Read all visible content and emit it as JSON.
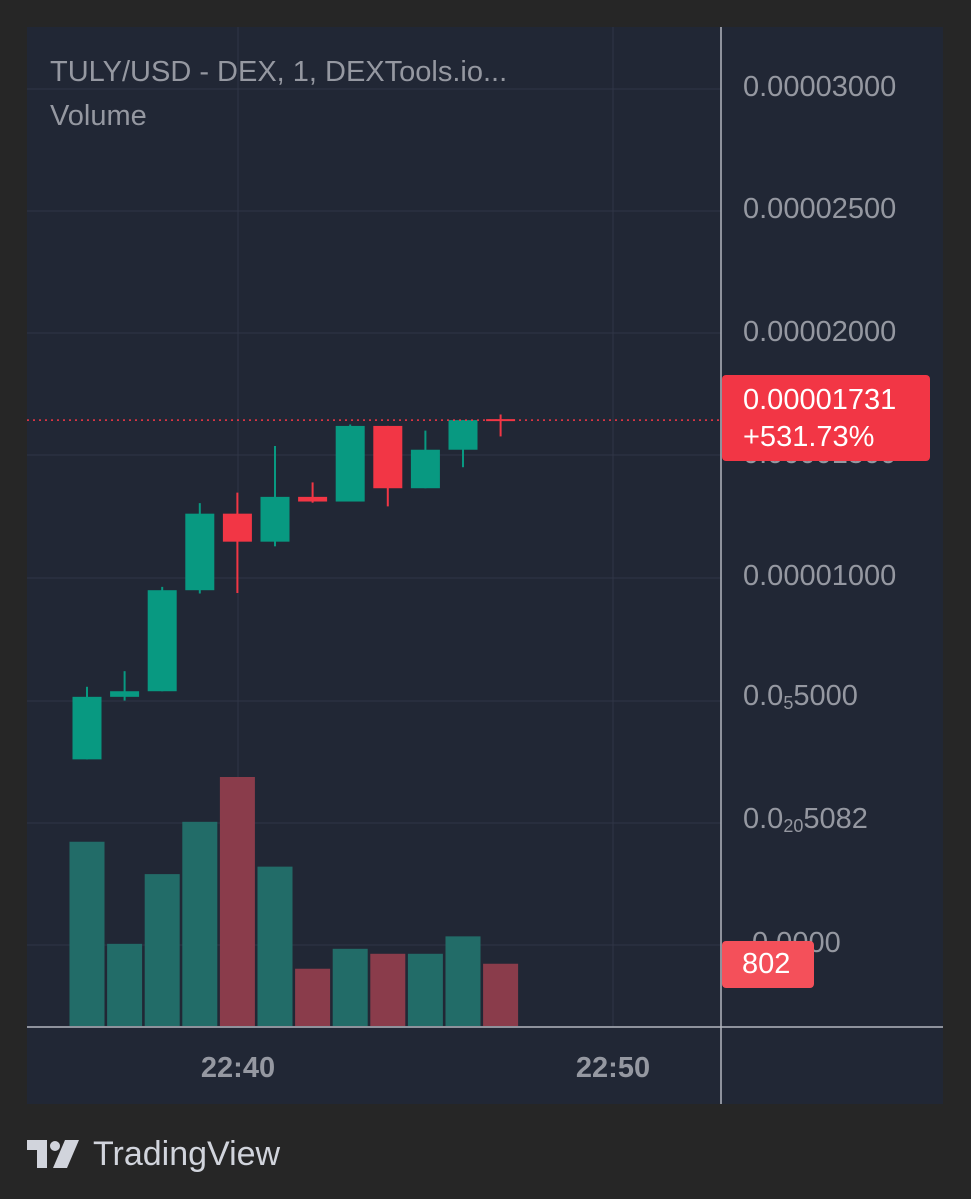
{
  "legend": {
    "title": "TULY/USD - DEX, 1, DEXTools.io...",
    "volume": "Volume"
  },
  "price_axis": {
    "ticks": [
      {
        "label": "0.00003000"
      },
      {
        "label": "0.00002500"
      },
      {
        "label": "0.00002000"
      },
      {
        "label": "0.00001500"
      },
      {
        "label": "0.00001000"
      },
      {
        "base": "0.0",
        "sub": "5",
        "rest": "5000"
      },
      {
        "base": "0.0",
        "sub": "20",
        "rest": "5082"
      },
      {
        "label": "0.0000"
      }
    ]
  },
  "time_axis": {
    "ticks": [
      "22:40",
      "22:50"
    ]
  },
  "last_price": {
    "value": "0.00001731",
    "change": "+531.73%"
  },
  "last_volume": {
    "value": "802"
  },
  "brand": {
    "name": "TradingView"
  },
  "colors": {
    "background": "#212735",
    "up": "#089981",
    "down": "#f23645",
    "volume_up": "#226c68",
    "volume_down": "#8a3c4b",
    "grid": "#2f3647",
    "text": "#9598a1"
  },
  "chart_data": {
    "type": "candlestick",
    "title": "TULY/USD - DEX, 1, DEXTools.io...",
    "interval": "1",
    "price_range": [
      2.7e-06,
      3.15e-05
    ],
    "volume_range": [
      0,
      1
    ],
    "candles": [
      {
        "open": 2.77e-06,
        "high": 5.88e-06,
        "low": 2.77e-06,
        "close": 5.45e-06,
        "volume": 0.74
      },
      {
        "open": 5.45e-06,
        "high": 6.55e-06,
        "low": 5.29e-06,
        "close": 5.69e-06,
        "volume": 0.33
      },
      {
        "open": 5.69e-06,
        "high": 1.016e-05,
        "low": 5.69e-06,
        "close": 1.002e-05,
        "volume": 0.61
      },
      {
        "open": 1.002e-05,
        "high": 1.375e-05,
        "low": 9.88e-06,
        "close": 1.33e-05,
        "volume": 0.82
      },
      {
        "open": 1.33e-05,
        "high": 1.42e-05,
        "low": 9.9e-06,
        "close": 1.21e-05,
        "volume": 1.0
      },
      {
        "open": 1.21e-05,
        "high": 1.62e-05,
        "low": 1.19e-05,
        "close": 1.402e-05,
        "volume": 0.64
      },
      {
        "open": 1.402e-05,
        "high": 1.464e-05,
        "low": 1.377e-05,
        "close": 1.382e-05,
        "volume": 0.23
      },
      {
        "open": 1.382e-05,
        "high": 1.712e-05,
        "low": 1.382e-05,
        "close": 1.706e-05,
        "volume": 0.31
      },
      {
        "open": 1.706e-05,
        "high": 1.706e-05,
        "low": 1.361e-05,
        "close": 1.439e-05,
        "volume": 0.29
      },
      {
        "open": 1.439e-05,
        "high": 1.686e-05,
        "low": 1.439e-05,
        "close": 1.604e-05,
        "volume": 0.29
      },
      {
        "open": 1.604e-05,
        "high": 1.731e-05,
        "low": 1.529e-05,
        "close": 1.731e-05,
        "volume": 0.36
      },
      {
        "open": 1.731e-05,
        "high": 1.755e-05,
        "low": 1.661e-05,
        "close": 1.731e-05,
        "volume": 0.25
      }
    ]
  }
}
